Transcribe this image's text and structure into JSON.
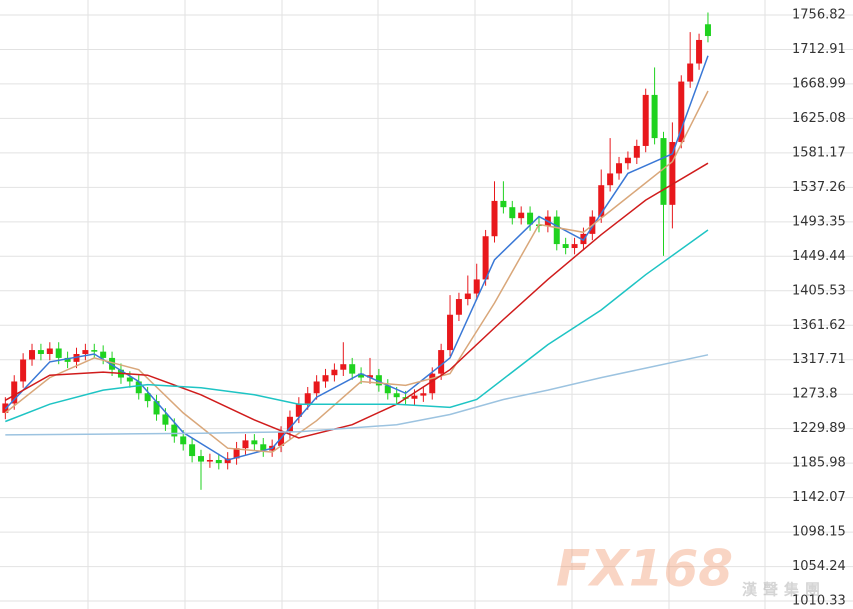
{
  "chart_data": {
    "type": "candlestick",
    "xlim": [
      -0.6,
      87.1
    ],
    "ylim": [
      1000.2,
      1775.9
    ],
    "yticks": [
      1756.82,
      1712.91,
      1668.99,
      1625.08,
      1581.17,
      1537.26,
      1493.35,
      1449.44,
      1405.53,
      1361.62,
      1317.71,
      1273.8,
      1229.89,
      1185.98,
      1142.07,
      1098.15,
      1054.24,
      1010.33
    ],
    "grid": true,
    "up_color": "#e8181c",
    "down_color": "#1fd21f",
    "open": [
      1250,
      1262,
      1290,
      1318,
      1330,
      1325,
      1332,
      1320,
      1315,
      1325,
      1330,
      1328,
      1320,
      1305,
      1295,
      1290,
      1275,
      1265,
      1248,
      1235,
      1220,
      1210,
      1195,
      1188,
      1190,
      1186,
      1192,
      1205,
      1215,
      1210,
      1202,
      1208,
      1225,
      1245,
      1262,
      1275,
      1290,
      1298,
      1305,
      1312,
      1300,
      1295,
      1298,
      1285,
      1275,
      1270,
      1268,
      1272,
      1275,
      1300,
      1330,
      1375,
      1395,
      1402,
      1420,
      1475,
      1520,
      1512,
      1498,
      1505,
      1490,
      1488,
      1500,
      1465,
      1460,
      1465,
      1478,
      1500,
      1540,
      1555,
      1568,
      1575,
      1590,
      1655,
      1600,
      1515,
      1595,
      1672,
      1695,
      1745
    ],
    "high": [
      1270,
      1298,
      1326,
      1338,
      1338,
      1340,
      1340,
      1328,
      1333,
      1338,
      1338,
      1336,
      1328,
      1313,
      1303,
      1298,
      1283,
      1273,
      1256,
      1243,
      1228,
      1218,
      1203,
      1198,
      1198,
      1200,
      1213,
      1223,
      1223,
      1218,
      1216,
      1233,
      1253,
      1270,
      1283,
      1298,
      1306,
      1313,
      1340,
      1320,
      1308,
      1320,
      1306,
      1293,
      1283,
      1278,
      1280,
      1283,
      1308,
      1338,
      1400,
      1403,
      1425,
      1440,
      1483,
      1545,
      1545,
      1520,
      1513,
      1513,
      1500,
      1508,
      1508,
      1473,
      1473,
      1486,
      1508,
      1560,
      1600,
      1576,
      1583,
      1598,
      1663,
      1690,
      1608,
      1620,
      1680,
      1735,
      1733,
      1760
    ],
    "low": [
      1242,
      1254,
      1282,
      1310,
      1317,
      1317,
      1312,
      1307,
      1307,
      1317,
      1320,
      1312,
      1297,
      1287,
      1282,
      1267,
      1257,
      1240,
      1227,
      1212,
      1202,
      1187,
      1152,
      1180,
      1178,
      1178,
      1184,
      1197,
      1202,
      1194,
      1194,
      1200,
      1217,
      1237,
      1254,
      1267,
      1282,
      1290,
      1297,
      1292,
      1287,
      1287,
      1277,
      1267,
      1262,
      1260,
      1260,
      1264,
      1267,
      1292,
      1322,
      1367,
      1387,
      1394,
      1412,
      1467,
      1504,
      1490,
      1490,
      1482,
      1480,
      1480,
      1457,
      1452,
      1452,
      1457,
      1470,
      1492,
      1532,
      1547,
      1560,
      1567,
      1582,
      1592,
      1450,
      1485,
      1587,
      1664,
      1687,
      1722
    ],
    "close": [
      1262,
      1290,
      1318,
      1330,
      1325,
      1332,
      1320,
      1315,
      1325,
      1330,
      1328,
      1320,
      1305,
      1295,
      1290,
      1275,
      1265,
      1248,
      1235,
      1220,
      1210,
      1195,
      1188,
      1190,
      1186,
      1192,
      1205,
      1215,
      1210,
      1202,
      1208,
      1225,
      1245,
      1262,
      1275,
      1290,
      1298,
      1305,
      1312,
      1300,
      1295,
      1298,
      1285,
      1275,
      1270,
      1268,
      1272,
      1275,
      1300,
      1330,
      1375,
      1395,
      1402,
      1420,
      1475,
      1520,
      1512,
      1498,
      1505,
      1490,
      1488,
      1500,
      1465,
      1460,
      1465,
      1478,
      1500,
      1540,
      1555,
      1568,
      1575,
      1590,
      1655,
      1600,
      1515,
      1595,
      1672,
      1695,
      1725,
      1730
    ],
    "lines": [
      {
        "color": "#3a78d6",
        "x": [
          0,
          5,
          10,
          15,
          20,
          25,
          30,
          35,
          40,
          45,
          50,
          55,
          60,
          65,
          70,
          75,
          79
        ],
        "values": [
          1255,
          1315,
          1325,
          1290,
          1225,
          1190,
          1205,
          1270,
          1300,
          1275,
          1320,
          1445,
          1500,
          1470,
          1555,
          1580,
          1705
        ]
      },
      {
        "color": "#d9a77a",
        "x": [
          0,
          5,
          10,
          15,
          20,
          25,
          30,
          35,
          40,
          45,
          50,
          55,
          60,
          65,
          70,
          75,
          79
        ],
        "values": [
          1250,
          1295,
          1320,
          1305,
          1250,
          1205,
          1200,
          1240,
          1290,
          1285,
          1300,
          1390,
          1490,
          1480,
          1525,
          1570,
          1660
        ]
      },
      {
        "color": "#d01c1c",
        "x": [
          0,
          5,
          11,
          16,
          22,
          28,
          33,
          39,
          44,
          50,
          56,
          61,
          67,
          72,
          79
        ],
        "values": [
          1266,
          1298,
          1302,
          1298,
          1273,
          1241,
          1218,
          1235,
          1261,
          1305,
          1369,
          1420,
          1477,
          1521,
          1568
        ]
      },
      {
        "color": "#1ec4c4",
        "x": [
          0,
          5,
          11,
          16,
          22,
          28,
          33,
          39,
          44,
          50,
          53,
          61,
          67,
          72,
          79
        ],
        "values": [
          1239,
          1261,
          1279,
          1286,
          1282,
          1273,
          1261,
          1261,
          1261,
          1257,
          1267,
          1337,
          1381,
          1426,
          1483
        ]
      },
      {
        "color": "#9cc3e0",
        "x": [
          0,
          11,
          22,
          33,
          44,
          50,
          56,
          61,
          67,
          72,
          79
        ],
        "values": [
          1222,
          1223,
          1224,
          1226,
          1235,
          1248,
          1267,
          1279,
          1295,
          1307,
          1324
        ]
      }
    ]
  },
  "watermark": {
    "brand": "FX168",
    "sub": "漢聲集團"
  }
}
